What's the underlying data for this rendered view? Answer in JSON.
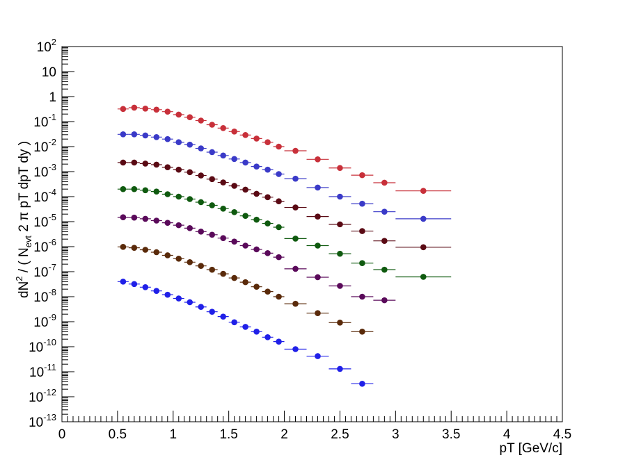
{
  "chart_data": {
    "type": "scatter",
    "title": "",
    "xlabel": "pT [GeV/c]",
    "ylabel": "dN² / ( Nevt 2 π pT dpT dy )",
    "ylabel_parts": {
      "lead": "dN",
      "sup": "2",
      "mid": " / ( N",
      "sub": "evt",
      "tail": " 2 π pT dpT dy )"
    },
    "xlim": [
      0,
      4.5
    ],
    "ylim": [
      1e-13,
      100
    ],
    "yscale": "log",
    "grid": false,
    "x_ticks": [
      "0",
      "0.5",
      "1",
      "1.5",
      "2",
      "2.5",
      "3",
      "3.5",
      "4",
      "4.5"
    ],
    "y_tick_mantissa": "10",
    "y_tick_exponents": [
      "-13",
      "-12",
      "-11",
      "-10",
      "-9",
      "-8",
      "-7",
      "-6",
      "-5",
      "-4",
      "-3",
      "-2",
      "-1",
      "",
      "",
      ""
    ],
    "y_tick_plain": [
      "",
      "",
      "",
      "",
      "",
      "",
      "",
      "",
      "",
      "",
      "",
      "",
      "",
      "1",
      "10",
      ""
    ],
    "y_tick_values": [
      -13,
      -12,
      -11,
      -10,
      -9,
      -8,
      -7,
      -6,
      -5,
      -4,
      -3,
      -2,
      -1,
      0,
      1,
      2
    ],
    "y_tick_top_exponent": "2",
    "bins": {
      "narrow_centers": [
        0.55,
        0.65,
        0.75,
        0.85,
        0.95,
        1.05,
        1.15,
        1.25,
        1.35,
        1.45,
        1.55,
        1.65,
        1.75,
        1.85,
        1.95
      ],
      "narrow_halfwidth": 0.05,
      "wide_centers": [
        2.1,
        2.3,
        2.5,
        2.7,
        2.9
      ],
      "wide_halfwidth": 0.1,
      "last_center": 3.25,
      "last_halfwidth": 0.25
    },
    "series": [
      {
        "color": "#c8303a",
        "x": [
          0.55,
          0.65,
          0.75,
          0.85,
          0.95,
          1.05,
          1.15,
          1.25,
          1.35,
          1.45,
          1.55,
          1.65,
          1.75,
          1.85,
          1.95,
          2.1,
          2.3,
          2.5,
          2.7,
          2.9,
          3.25
        ],
        "y": [
          0.32,
          0.36,
          0.33,
          0.3,
          0.25,
          0.19,
          0.15,
          0.11,
          0.075,
          0.055,
          0.04,
          0.029,
          0.021,
          0.015,
          0.01,
          0.0068,
          0.0031,
          0.0014,
          0.00072,
          0.00036,
          0.00017
        ]
      },
      {
        "color": "#3a3ac8",
        "x": [
          0.55,
          0.65,
          0.75,
          0.85,
          0.95,
          1.05,
          1.15,
          1.25,
          1.35,
          1.45,
          1.55,
          1.65,
          1.75,
          1.85,
          1.95,
          2.1,
          2.3,
          2.5,
          2.7,
          2.9,
          3.25
        ],
        "y": [
          0.031,
          0.031,
          0.028,
          0.024,
          0.02,
          0.015,
          0.012,
          0.0085,
          0.006,
          0.0044,
          0.0032,
          0.0023,
          0.0016,
          0.0012,
          0.0008,
          0.00052,
          0.00023,
          0.0001,
          5.2e-05,
          2.5e-05,
          1.3e-05
        ]
      },
      {
        "color": "#5a0a14",
        "x": [
          0.55,
          0.65,
          0.75,
          0.85,
          0.95,
          1.05,
          1.15,
          1.25,
          1.35,
          1.45,
          1.55,
          1.65,
          1.75,
          1.85,
          1.95,
          2.1,
          2.3,
          2.5,
          2.7,
          2.9,
          3.25
        ],
        "y": [
          0.0023,
          0.0023,
          0.0021,
          0.0019,
          0.0015,
          0.0012,
          0.00095,
          0.0007,
          0.0005,
          0.00037,
          0.00027,
          0.00019,
          0.00013,
          9.5e-05,
          6.5e-05,
          3.7e-05,
          1.6e-05,
          7.8e-06,
          4.2e-06,
          1.7e-06,
          9.5e-07
        ]
      },
      {
        "color": "#0f5a0f",
        "x": [
          0.55,
          0.65,
          0.75,
          0.85,
          0.95,
          1.05,
          1.15,
          1.25,
          1.35,
          1.45,
          1.55,
          1.65,
          1.75,
          1.85,
          1.95,
          2.1,
          2.3,
          2.5,
          2.7,
          2.9,
          3.25
        ],
        "y": [
          0.0002,
          0.0002,
          0.00018,
          0.00016,
          0.000125,
          0.0001,
          8e-05,
          6e-05,
          4.5e-05,
          3.3e-05,
          2.4e-05,
          1.7e-05,
          1.2e-05,
          8.5e-06,
          6e-06,
          2.1e-06,
          1.1e-06,
          5.2e-07,
          2.2e-07,
          1.2e-07,
          6.2e-08
        ]
      },
      {
        "color": "#5a0a5a",
        "x": [
          0.55,
          0.65,
          0.75,
          0.85,
          0.95,
          1.05,
          1.15,
          1.25,
          1.35,
          1.45,
          1.55,
          1.65,
          1.75,
          1.85,
          1.95,
          2.1,
          2.3,
          2.5,
          2.7,
          2.9
        ],
        "y": [
          1.5e-05,
          1.45e-05,
          1.3e-05,
          1.1e-05,
          9e-06,
          7.2e-06,
          5.5e-06,
          4e-06,
          3e-06,
          2.2e-06,
          1.6e-06,
          1.1e-06,
          7.8e-07,
          5.5e-07,
          3.8e-07,
          1.3e-07,
          6e-08,
          2.7e-08,
          1e-08,
          7.2e-09
        ]
      },
      {
        "color": "#5a2a0a",
        "x": [
          0.55,
          0.65,
          0.75,
          0.85,
          0.95,
          1.05,
          1.15,
          1.25,
          1.35,
          1.45,
          1.55,
          1.65,
          1.75,
          1.85,
          1.95,
          2.1,
          2.3,
          2.5,
          2.7
        ],
        "y": [
          9.8e-07,
          9e-07,
          7.5e-07,
          6e-07,
          4.5e-07,
          3.3e-07,
          2.4e-07,
          1.7e-07,
          1.2e-07,
          8.2e-08,
          5.6e-08,
          3.8e-08,
          2.5e-08,
          1.6e-08,
          1e-08,
          5.2e-09,
          2.2e-09,
          9.2e-10,
          4e-10
        ]
      },
      {
        "color": "#2020e8",
        "x": [
          0.55,
          0.65,
          0.75,
          0.85,
          0.95,
          1.05,
          1.15,
          1.25,
          1.35,
          1.45,
          1.55,
          1.65,
          1.75,
          1.85,
          1.95,
          2.1,
          2.3,
          2.5,
          2.7
        ],
        "y": [
          4e-08,
          3.2e-08,
          2.4e-08,
          1.7e-08,
          1.2e-08,
          8.5e-09,
          6e-09,
          3.9e-09,
          2.5e-09,
          1.6e-09,
          9.5e-10,
          6.2e-10,
          4e-10,
          2.4e-10,
          1.6e-10,
          8e-11,
          4.2e-11,
          1.3e-11,
          3.3e-12
        ]
      }
    ]
  }
}
